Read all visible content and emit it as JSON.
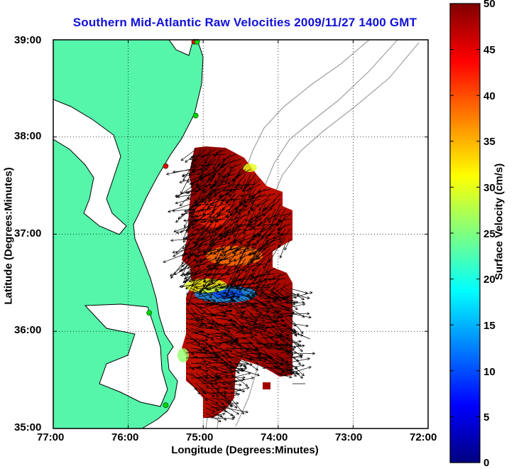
{
  "title": "Southern Mid-Atlantic Raw Velocities 2009/11/27 1400 GMT",
  "axes": {
    "xlabel": "Longitude (Degrees:Minutes)",
    "ylabel": "Latitude (Degrees:Minutes)",
    "xticks": [
      "77:00",
      "76:00",
      "75:00",
      "74:00",
      "73:00",
      "72:00"
    ],
    "yticks": [
      "39:00",
      "38:00",
      "37:00",
      "36:00",
      "35:00"
    ],
    "xlim": [
      -77,
      -72
    ],
    "ylim": [
      35,
      39
    ],
    "grid": "dotted"
  },
  "colorbar": {
    "label": "Surface Velocity (cm/s)",
    "ticks": [
      "50",
      "45",
      "40",
      "35",
      "30",
      "25",
      "20",
      "15",
      "10",
      "5",
      "0"
    ],
    "range": [
      0,
      50
    ],
    "colormap": "jet"
  },
  "colors": {
    "title": "#1010d8",
    "land": "#55f5aa",
    "coastline": "#000000",
    "bathymetry": "#a0a0a0",
    "velocity_high": "#8b0000",
    "velocity_low": "#00e0ff"
  },
  "stations": [
    {
      "lon": -75.12,
      "lat": 38.98,
      "status": "red"
    },
    {
      "lon": -75.08,
      "lat": 38.98,
      "status": "green"
    },
    {
      "lon": -75.1,
      "lat": 38.22,
      "status": "green"
    },
    {
      "lon": -75.5,
      "lat": 37.7,
      "status": "red"
    },
    {
      "lon": -75.72,
      "lat": 36.19,
      "status": "green"
    },
    {
      "lon": -75.5,
      "lat": 35.24,
      "status": "green"
    }
  ]
}
